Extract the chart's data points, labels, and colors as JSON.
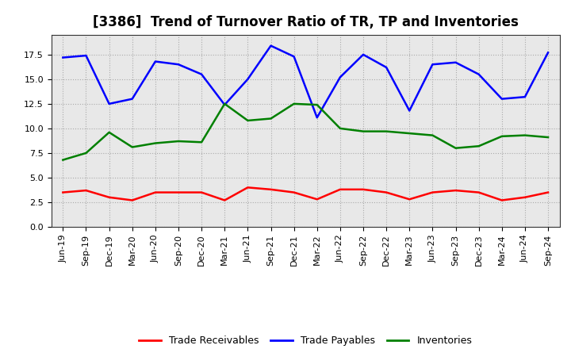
{
  "title": "[3386]  Trend of Turnover Ratio of TR, TP and Inventories",
  "labels": [
    "Jun-19",
    "Sep-19",
    "Dec-19",
    "Mar-20",
    "Jun-20",
    "Sep-20",
    "Dec-20",
    "Mar-21",
    "Jun-21",
    "Sep-21",
    "Dec-21",
    "Mar-22",
    "Jun-22",
    "Sep-22",
    "Dec-22",
    "Mar-23",
    "Jun-23",
    "Sep-23",
    "Dec-23",
    "Mar-24",
    "Jun-24",
    "Sep-24"
  ],
  "trade_receivables": [
    3.5,
    3.7,
    3.0,
    2.7,
    3.5,
    3.5,
    3.5,
    2.7,
    4.0,
    3.8,
    3.5,
    2.8,
    3.8,
    3.8,
    3.5,
    2.8,
    3.5,
    3.7,
    3.5,
    2.7,
    3.0,
    3.5
  ],
  "trade_payables": [
    17.2,
    17.4,
    12.5,
    13.0,
    16.8,
    16.5,
    15.5,
    12.4,
    15.0,
    18.4,
    17.3,
    11.1,
    15.2,
    17.5,
    16.2,
    11.8,
    16.5,
    16.7,
    15.5,
    13.0,
    13.2,
    17.7
  ],
  "inventories": [
    6.8,
    7.5,
    9.6,
    8.1,
    8.5,
    8.7,
    8.6,
    12.5,
    10.8,
    11.0,
    12.5,
    12.4,
    10.0,
    9.7,
    9.7,
    9.5,
    9.3,
    8.0,
    8.2,
    9.2,
    9.3,
    9.1
  ],
  "tr_color": "#ff0000",
  "tp_color": "#0000ff",
  "inv_color": "#008000",
  "ylim": [
    0,
    19.5
  ],
  "yticks": [
    0.0,
    2.5,
    5.0,
    7.5,
    10.0,
    12.5,
    15.0,
    17.5
  ],
  "plot_bg_color": "#e8e8e8",
  "fig_bg_color": "#ffffff",
  "grid_color": "#ffffff",
  "legend_labels": [
    "Trade Receivables",
    "Trade Payables",
    "Inventories"
  ],
  "title_fontsize": 12,
  "tick_fontsize": 8,
  "legend_fontsize": 9
}
